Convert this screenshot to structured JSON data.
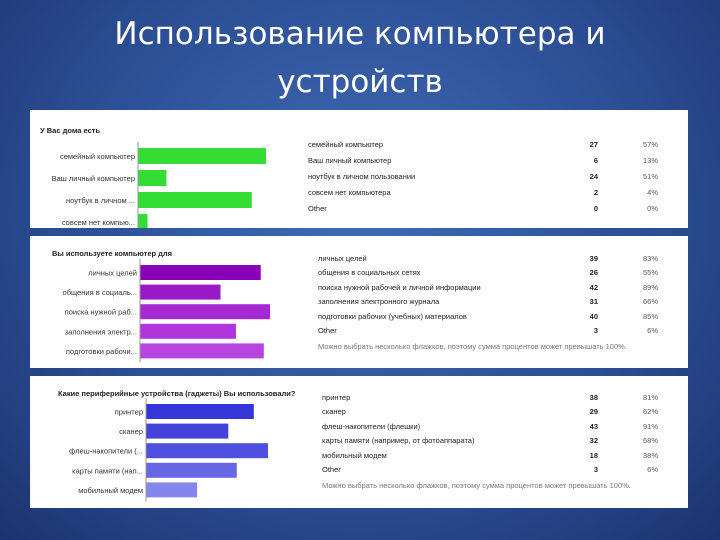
{
  "title": {
    "line1": "Использование компьютера и",
    "line2": "устройств"
  },
  "panels": [
    {
      "question": "У Вас дома есть",
      "rows": [
        {
          "label": "семейный компьютер",
          "count": "27",
          "pct": "57%"
        },
        {
          "label": "Ваш личный компьютер",
          "count": "6",
          "pct": "13%"
        },
        {
          "label": "ноутбук в личном пользовании",
          "count": "24",
          "pct": "51%"
        },
        {
          "label": "совсем нет компьютера",
          "count": "2",
          "pct": "4%"
        },
        {
          "label": "Other",
          "count": "0",
          "pct": "0%"
        }
      ],
      "note": ""
    },
    {
      "question": "Вы используете компьютер для",
      "rows": [
        {
          "label": "личных целей",
          "count": "39",
          "pct": "83%"
        },
        {
          "label": "общения в социальных сетях",
          "count": "26",
          "pct": "55%"
        },
        {
          "label": "поиска нужной рабочей и личной информации",
          "count": "42",
          "pct": "89%"
        },
        {
          "label": "заполнения электронного журнала",
          "count": "31",
          "pct": "66%"
        },
        {
          "label": "подготовки рабочих (учебных) материалов",
          "count": "40",
          "pct": "85%"
        },
        {
          "label": "Other",
          "count": "3",
          "pct": "6%"
        }
      ],
      "note": "Можно выбрать несколько флажков, поэтому сумма процентов может превышать 100%."
    },
    {
      "question": "Какие периферийные устройства (гаджеты) Вы использовали?",
      "rows": [
        {
          "label": "принтер",
          "count": "38",
          "pct": "81%"
        },
        {
          "label": "сканер",
          "count": "29",
          "pct": "62%"
        },
        {
          "label": "флеш-накопители (флешки)",
          "count": "43",
          "pct": "91%"
        },
        {
          "label": "карты памяти (например, от фотоаппарата)",
          "count": "32",
          "pct": "68%"
        },
        {
          "label": "мобильный модем",
          "count": "18",
          "pct": "38%"
        },
        {
          "label": "Other",
          "count": "3",
          "pct": "6%"
        }
      ],
      "note": "Можно выбрать несколько флажков, поэтому сумма процентов может превышать 100%."
    }
  ],
  "chart_data": [
    {
      "type": "bar",
      "orientation": "horizontal",
      "title": "У Вас дома есть",
      "categories": [
        "семейный компьютер",
        "Ваш личный компьютер",
        "ноутбук в личном ...",
        "совсем нет компью..."
      ],
      "values": [
        27,
        6,
        24,
        2
      ],
      "color": "#33dd33",
      "xlim": [
        0,
        48
      ]
    },
    {
      "type": "bar",
      "orientation": "horizontal",
      "title": "Вы используете компьютер для",
      "categories": [
        "личных целей",
        "общения в социаль...",
        "поиска нужной раб...",
        "заполнения электр...",
        "подготовки рабочи..."
      ],
      "values": [
        39,
        26,
        42,
        31,
        40
      ],
      "colors": [
        "#8a00b8",
        "#9a18c8",
        "#a528d2",
        "#b035dc",
        "#b845e0"
      ],
      "xlim": [
        0,
        48
      ]
    },
    {
      "type": "bar",
      "orientation": "horizontal",
      "title": "Какие периферийные устройства (гаджеты) Вы использовали?",
      "categories": [
        "принтер",
        "сканер",
        "флеш-накопители (...",
        "карты памяти (нап...",
        "мобильный модем"
      ],
      "values": [
        38,
        29,
        43,
        32,
        18
      ],
      "colors": [
        "#3535d8",
        "#4343dc",
        "#4f4fe0",
        "#6767e6",
        "#8585ee"
      ],
      "xlim": [
        0,
        48
      ]
    }
  ]
}
